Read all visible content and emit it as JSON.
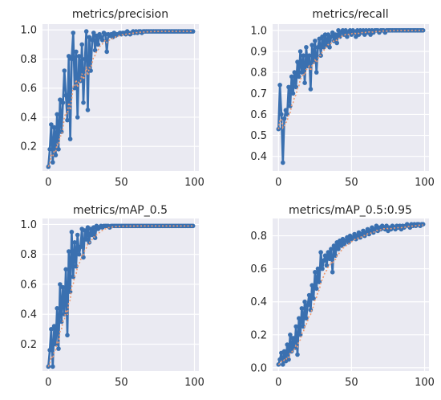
{
  "chart_data": [
    {
      "type": "line",
      "title": "metrics/precision",
      "xlim": [
        -4,
        103
      ],
      "ylim": [
        0.03,
        1.04
      ],
      "xticks": [
        0,
        50,
        100
      ],
      "yticks": [
        0.2,
        0.4,
        0.6,
        0.8,
        1.0
      ],
      "ytick_labels": [
        "0.2",
        "0.4",
        "0.6",
        "0.8",
        "1.0"
      ],
      "grid": true,
      "colors": {
        "series": "#3a70b0",
        "smooth": "#ed9a72",
        "bg": "#eaeaf2",
        "grid": "#ffffff"
      },
      "series": [
        {
          "x": [
            0,
            1,
            2,
            3,
            4,
            5,
            6,
            7,
            8,
            9,
            10,
            11,
            12,
            13,
            14,
            15,
            16,
            17,
            18,
            19,
            20,
            21,
            22,
            23,
            24,
            25,
            26,
            27,
            28,
            29,
            30,
            31,
            32,
            33,
            34,
            35,
            36,
            37,
            38,
            39,
            40,
            41,
            42,
            43,
            44,
            45,
            46,
            47,
            48,
            49,
            50,
            51,
            52,
            53,
            54,
            55,
            56,
            57,
            58,
            59,
            60,
            61,
            62,
            63,
            64,
            65,
            66,
            67,
            68,
            69,
            70,
            71,
            72,
            73,
            74,
            75,
            76,
            77,
            78,
            79,
            80,
            81,
            82,
            83,
            84,
            85,
            86,
            87,
            88,
            89,
            90,
            91,
            92,
            93,
            94,
            95,
            96,
            97,
            98,
            99
          ],
          "y": [
            0.06,
            0.18,
            0.35,
            0.09,
            0.33,
            0.14,
            0.42,
            0.18,
            0.52,
            0.3,
            0.5,
            0.72,
            0.55,
            0.38,
            0.82,
            0.25,
            0.8,
            0.98,
            0.6,
            0.85,
            0.4,
            0.82,
            0.65,
            0.9,
            0.5,
            0.8,
            0.99,
            0.45,
            0.95,
            0.72,
            0.93,
            0.98,
            0.86,
            0.96,
            0.9,
            0.97,
            0.95,
            0.93,
            0.98,
            0.97,
            0.85,
            0.97,
            0.96,
            0.97,
            0.95,
            0.98,
            0.96,
            0.97,
            0.97,
            0.98,
            0.97,
            0.98,
            0.98,
            0.97,
            0.99,
            0.98,
            0.97,
            0.98,
            0.99,
            0.98,
            0.99,
            0.98,
            0.99,
            0.99,
            0.98,
            0.99,
            0.99,
            0.99,
            0.99,
            0.99,
            0.99,
            0.99,
            0.99,
            0.99,
            0.99,
            0.99,
            0.99,
            0.99,
            0.99,
            0.99,
            0.99,
            0.99,
            0.99,
            0.99,
            0.99,
            0.99,
            0.99,
            0.99,
            0.99,
            0.99,
            0.99,
            0.99,
            0.99,
            0.99,
            0.99,
            0.99,
            0.99,
            0.99,
            0.99,
            0.99
          ]
        }
      ]
    },
    {
      "type": "line",
      "title": "metrics/recall",
      "xlim": [
        -4,
        103
      ],
      "ylim": [
        0.33,
        1.03
      ],
      "xticks": [
        0,
        50,
        100
      ],
      "yticks": [
        0.4,
        0.5,
        0.6,
        0.7,
        0.8,
        0.9,
        1.0
      ],
      "ytick_labels": [
        "0.4",
        "0.5",
        "0.6",
        "0.7",
        "0.8",
        "0.9",
        "1.0"
      ],
      "grid": true,
      "colors": {
        "series": "#3a70b0",
        "smooth": "#ed9a72",
        "bg": "#eaeaf2",
        "grid": "#ffffff"
      },
      "series": [
        {
          "x": [
            0,
            1,
            2,
            3,
            4,
            5,
            6,
            7,
            8,
            9,
            10,
            11,
            12,
            13,
            14,
            15,
            16,
            17,
            18,
            19,
            20,
            21,
            22,
            23,
            24,
            25,
            26,
            27,
            28,
            29,
            30,
            31,
            32,
            33,
            34,
            35,
            36,
            37,
            38,
            39,
            40,
            41,
            42,
            43,
            44,
            45,
            46,
            47,
            48,
            49,
            50,
            51,
            52,
            53,
            54,
            55,
            56,
            57,
            58,
            59,
            60,
            61,
            62,
            63,
            64,
            65,
            66,
            67,
            68,
            69,
            70,
            71,
            72,
            73,
            74,
            75,
            76,
            77,
            78,
            79,
            80,
            81,
            82,
            83,
            84,
            85,
            86,
            87,
            88,
            89,
            90,
            91,
            92,
            93,
            94,
            95,
            96,
            97,
            98,
            99
          ],
          "y": [
            0.53,
            0.74,
            0.6,
            0.37,
            0.58,
            0.62,
            0.6,
            0.73,
            0.64,
            0.78,
            0.7,
            0.8,
            0.73,
            0.85,
            0.78,
            0.9,
            0.8,
            0.88,
            0.75,
            0.92,
            0.83,
            0.88,
            0.72,
            0.93,
            0.85,
            0.95,
            0.8,
            0.92,
            0.96,
            0.88,
            0.97,
            0.92,
            0.98,
            0.93,
            0.98,
            0.92,
            0.97,
            0.99,
            0.95,
            0.98,
            0.94,
            1.0,
            0.97,
            0.99,
            1.0,
            0.98,
            1.0,
            0.97,
            0.99,
            1.0,
            0.98,
            1.0,
            0.99,
            0.97,
            1.0,
            0.98,
            1.0,
            0.99,
            1.0,
            0.98,
            1.0,
            0.99,
            1.0,
            0.98,
            1.0,
            0.99,
            1.0,
            1.0,
            1.0,
            0.99,
            1.0,
            1.0,
            1.0,
            0.99,
            1.0,
            1.0,
            1.0,
            1.0,
            1.0,
            1.0,
            1.0,
            1.0,
            1.0,
            1.0,
            1.0,
            1.0,
            1.0,
            1.0,
            1.0,
            1.0,
            1.0,
            1.0,
            1.0,
            1.0,
            1.0,
            1.0,
            1.0,
            1.0,
            1.0,
            1.0
          ]
        }
      ]
    },
    {
      "type": "line",
      "title": "metrics/mAP_0.5",
      "xlim": [
        -4,
        103
      ],
      "ylim": [
        0.02,
        1.04
      ],
      "xticks": [
        0,
        50,
        100
      ],
      "yticks": [
        0.2,
        0.4,
        0.6,
        0.8,
        1.0
      ],
      "ytick_labels": [
        "0.2",
        "0.4",
        "0.6",
        "0.8",
        "1.0"
      ],
      "grid": true,
      "colors": {
        "series": "#3a70b0",
        "smooth": "#ed9a72",
        "bg": "#eaeaf2",
        "grid": "#ffffff"
      },
      "series": [
        {
          "x": [
            0,
            1,
            2,
            3,
            4,
            5,
            6,
            7,
            8,
            9,
            10,
            11,
            12,
            13,
            14,
            15,
            16,
            17,
            18,
            19,
            20,
            21,
            22,
            23,
            24,
            25,
            26,
            27,
            28,
            29,
            30,
            31,
            32,
            33,
            34,
            35,
            36,
            37,
            38,
            39,
            40,
            41,
            42,
            43,
            44,
            45,
            46,
            47,
            48,
            49,
            50,
            51,
            52,
            53,
            54,
            55,
            56,
            57,
            58,
            59,
            60,
            61,
            62,
            63,
            64,
            65,
            66,
            67,
            68,
            69,
            70,
            71,
            72,
            73,
            74,
            75,
            76,
            77,
            78,
            79,
            80,
            81,
            82,
            83,
            84,
            85,
            86,
            87,
            88,
            89,
            90,
            91,
            92,
            93,
            94,
            95,
            96,
            97,
            98,
            99
          ],
          "y": [
            0.05,
            0.16,
            0.3,
            0.05,
            0.32,
            0.2,
            0.44,
            0.17,
            0.6,
            0.35,
            0.58,
            0.4,
            0.7,
            0.26,
            0.82,
            0.55,
            0.95,
            0.65,
            0.88,
            0.72,
            0.93,
            0.8,
            0.85,
            0.97,
            0.78,
            0.96,
            0.9,
            0.98,
            0.88,
            0.97,
            0.93,
            0.98,
            0.91,
            0.99,
            0.97,
            0.98,
            0.99,
            0.98,
            0.99,
            0.99,
            0.99,
            0.99,
            0.98,
            0.99,
            0.99,
            0.99,
            0.99,
            0.99,
            0.99,
            0.99,
            0.99,
            0.99,
            0.99,
            0.99,
            0.99,
            0.99,
            0.99,
            0.99,
            0.99,
            0.99,
            0.99,
            0.99,
            0.99,
            0.99,
            0.99,
            0.99,
            0.99,
            0.99,
            0.99,
            0.99,
            0.99,
            0.99,
            0.99,
            0.99,
            0.99,
            0.99,
            0.99,
            0.99,
            0.99,
            0.99,
            0.99,
            0.99,
            0.99,
            0.99,
            0.99,
            0.99,
            0.99,
            0.99,
            0.99,
            0.99,
            0.99,
            0.99,
            0.99,
            0.99,
            0.99,
            0.99,
            0.99,
            0.99,
            0.99,
            0.99
          ]
        }
      ]
    },
    {
      "type": "line",
      "title": "metrics/mAP_0.5:0.95",
      "xlim": [
        -4,
        103
      ],
      "ylim": [
        -0.02,
        0.905
      ],
      "xticks": [
        0,
        50,
        100
      ],
      "yticks": [
        0.0,
        0.2,
        0.4,
        0.6,
        0.8
      ],
      "ytick_labels": [
        "0.0",
        "0.2",
        "0.4",
        "0.6",
        "0.8"
      ],
      "grid": true,
      "colors": {
        "series": "#3a70b0",
        "smooth": "#ed9a72",
        "bg": "#eaeaf2",
        "grid": "#ffffff"
      },
      "series": [
        {
          "x": [
            0,
            1,
            2,
            3,
            4,
            5,
            6,
            7,
            8,
            9,
            10,
            11,
            12,
            13,
            14,
            15,
            16,
            17,
            18,
            19,
            20,
            21,
            22,
            23,
            24,
            25,
            26,
            27,
            28,
            29,
            30,
            31,
            32,
            33,
            34,
            35,
            36,
            37,
            38,
            39,
            40,
            41,
            42,
            43,
            44,
            45,
            46,
            47,
            48,
            49,
            50,
            51,
            52,
            53,
            54,
            55,
            56,
            57,
            58,
            59,
            60,
            61,
            62,
            63,
            64,
            65,
            66,
            67,
            68,
            69,
            70,
            71,
            72,
            73,
            74,
            75,
            76,
            77,
            78,
            79,
            80,
            81,
            82,
            83,
            84,
            85,
            86,
            87,
            88,
            89,
            90,
            91,
            92,
            93,
            94,
            95,
            96,
            97,
            98,
            99
          ],
          "y": [
            0.02,
            0.05,
            0.09,
            0.02,
            0.1,
            0.04,
            0.14,
            0.05,
            0.2,
            0.1,
            0.18,
            0.12,
            0.25,
            0.08,
            0.3,
            0.2,
            0.36,
            0.25,
            0.4,
            0.3,
            0.38,
            0.44,
            0.35,
            0.5,
            0.42,
            0.58,
            0.48,
            0.6,
            0.52,
            0.7,
            0.6,
            0.65,
            0.68,
            0.62,
            0.7,
            0.66,
            0.72,
            0.58,
            0.74,
            0.68,
            0.76,
            0.72,
            0.77,
            0.74,
            0.78,
            0.75,
            0.77,
            0.79,
            0.76,
            0.8,
            0.78,
            0.79,
            0.81,
            0.78,
            0.8,
            0.82,
            0.79,
            0.81,
            0.83,
            0.8,
            0.82,
            0.84,
            0.81,
            0.83,
            0.85,
            0.82,
            0.84,
            0.86,
            0.83,
            0.85,
            0.84,
            0.86,
            0.85,
            0.84,
            0.86,
            0.83,
            0.85,
            0.84,
            0.86,
            0.85,
            0.84,
            0.86,
            0.85,
            0.86,
            0.84,
            0.86,
            0.85,
            0.86,
            0.87,
            0.86,
            0.85,
            0.87,
            0.86,
            0.87,
            0.86,
            0.87,
            0.87,
            0.86,
            0.87,
            0.87
          ]
        }
      ]
    }
  ]
}
